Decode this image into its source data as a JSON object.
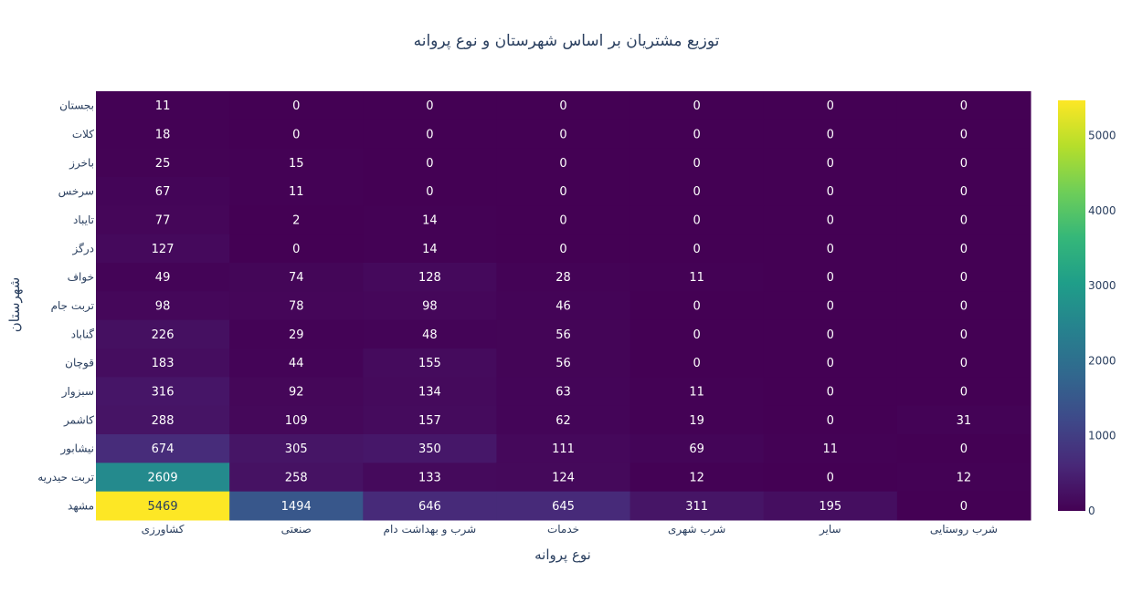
{
  "chart_data": {
    "type": "heatmap",
    "title": "توزیع مشتریان بر اساس شهرستان و نوع پروانه",
    "xlabel": "نوع پروانه",
    "ylabel": "شهرستان",
    "x": [
      "کشاورزی",
      "صنعتی",
      "شرب و بهداشت دام",
      "خدمات",
      "شرب شهری",
      "سایر",
      "شرب روستایی"
    ],
    "y": [
      "بجستان",
      "کلات",
      "باخرز",
      "سرخس",
      "تایباد",
      "درگز",
      "خواف",
      "تربت جام",
      "گناباد",
      "قوچان",
      "سبزوار",
      "کاشمر",
      "نیشابور",
      "تربت حیدریه",
      "مشهد"
    ],
    "z": [
      [
        11,
        0,
        0,
        0,
        0,
        0,
        0
      ],
      [
        18,
        0,
        0,
        0,
        0,
        0,
        0
      ],
      [
        25,
        15,
        0,
        0,
        0,
        0,
        0
      ],
      [
        67,
        11,
        0,
        0,
        0,
        0,
        0
      ],
      [
        77,
        2,
        14,
        0,
        0,
        0,
        0
      ],
      [
        127,
        0,
        14,
        0,
        0,
        0,
        0
      ],
      [
        49,
        74,
        128,
        28,
        11,
        0,
        0
      ],
      [
        98,
        78,
        98,
        46,
        0,
        0,
        0
      ],
      [
        226,
        29,
        48,
        56,
        0,
        0,
        0
      ],
      [
        183,
        44,
        155,
        56,
        0,
        0,
        0
      ],
      [
        316,
        92,
        134,
        63,
        11,
        0,
        0
      ],
      [
        288,
        109,
        157,
        62,
        19,
        0,
        31
      ],
      [
        674,
        305,
        350,
        111,
        69,
        11,
        0
      ],
      [
        2609,
        258,
        133,
        124,
        12,
        0,
        12
      ],
      [
        5469,
        1494,
        646,
        645,
        311,
        195,
        0
      ]
    ],
    "zmin": 0,
    "zmax": 5469,
    "colorscale": "Viridis",
    "colorbar_ticks": [
      "0",
      "1000",
      "2000",
      "3000",
      "4000",
      "5000"
    ],
    "colorbar_tick_values": [
      0,
      1000,
      2000,
      3000,
      4000,
      5000
    ]
  }
}
